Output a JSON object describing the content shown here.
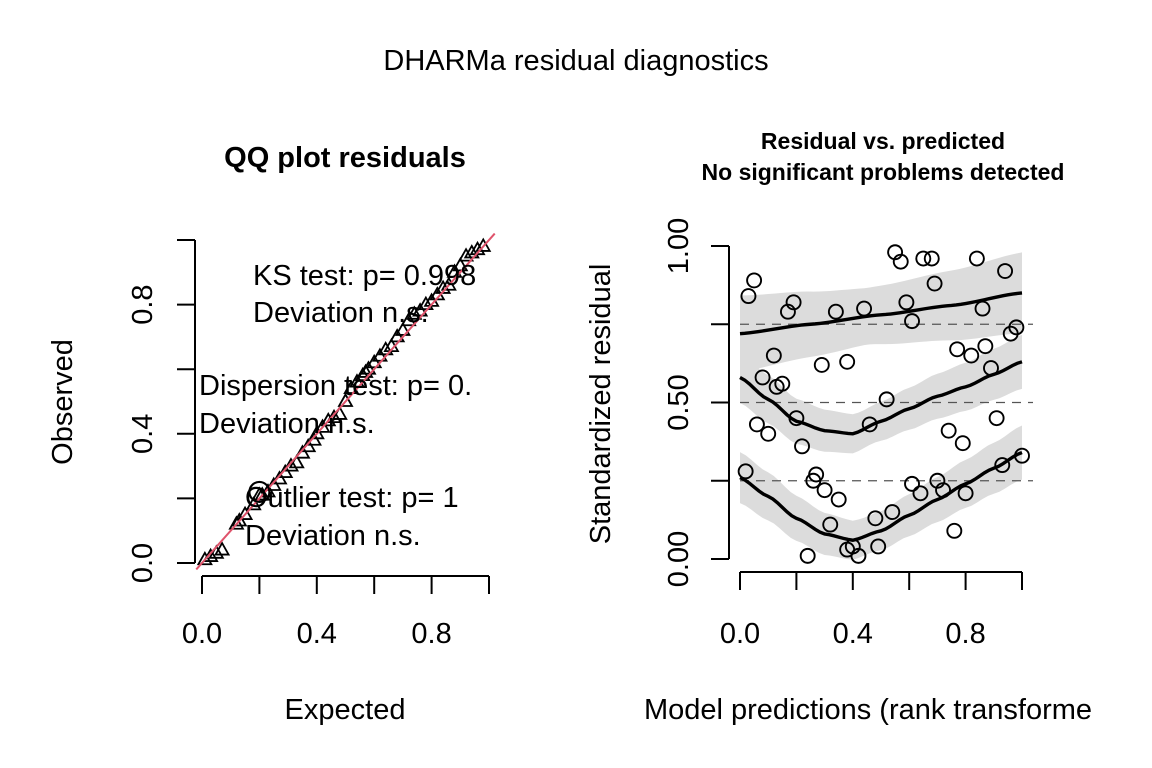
{
  "figure_title": "DHARMa residual diagnostics",
  "chart_data": [
    {
      "type": "scatter",
      "title": "QQ plot residuals",
      "xlabel": "Expected",
      "ylabel": "Observed",
      "xlim": [
        0,
        1
      ],
      "ylim": [
        0,
        1
      ],
      "x_ticks": [
        "0.0",
        "0.4",
        "0.8"
      ],
      "y_ticks": [
        "0.0",
        "0.4",
        "0.8"
      ],
      "reference_line": {
        "slope": 1,
        "intercept": 0,
        "color": "#DF536B"
      },
      "marker": "triangle",
      "outlier_marker_at": [
        0.2,
        0.22
      ],
      "points": [
        [
          0.01,
          0.01
        ],
        [
          0.03,
          0.02
        ],
        [
          0.05,
          0.03
        ],
        [
          0.07,
          0.04
        ],
        [
          0.12,
          0.12
        ],
        [
          0.13,
          0.13
        ],
        [
          0.15,
          0.15
        ],
        [
          0.18,
          0.18
        ],
        [
          0.2,
          0.21
        ],
        [
          0.21,
          0.21
        ],
        [
          0.23,
          0.22
        ],
        [
          0.25,
          0.24
        ],
        [
          0.27,
          0.26
        ],
        [
          0.29,
          0.28
        ],
        [
          0.31,
          0.3
        ],
        [
          0.33,
          0.31
        ],
        [
          0.35,
          0.34
        ],
        [
          0.37,
          0.36
        ],
        [
          0.39,
          0.38
        ],
        [
          0.4,
          0.4
        ],
        [
          0.42,
          0.42
        ],
        [
          0.44,
          0.44
        ],
        [
          0.46,
          0.45
        ],
        [
          0.48,
          0.46
        ],
        [
          0.5,
          0.5
        ],
        [
          0.52,
          0.54
        ],
        [
          0.54,
          0.56
        ],
        [
          0.56,
          0.58
        ],
        [
          0.57,
          0.59
        ],
        [
          0.58,
          0.6
        ],
        [
          0.6,
          0.62
        ],
        [
          0.62,
          0.64
        ],
        [
          0.64,
          0.66
        ],
        [
          0.66,
          0.67
        ],
        [
          0.68,
          0.7
        ],
        [
          0.7,
          0.72
        ],
        [
          0.72,
          0.75
        ],
        [
          0.74,
          0.77
        ],
        [
          0.76,
          0.78
        ],
        [
          0.78,
          0.8
        ],
        [
          0.8,
          0.81
        ],
        [
          0.82,
          0.83
        ],
        [
          0.84,
          0.85
        ],
        [
          0.86,
          0.86
        ],
        [
          0.88,
          0.9
        ],
        [
          0.9,
          0.92
        ],
        [
          0.92,
          0.95
        ],
        [
          0.94,
          0.96
        ],
        [
          0.96,
          0.97
        ],
        [
          0.98,
          0.98
        ]
      ],
      "annotations": [
        {
          "line1": "KS test: p= 0.998",
          "line2": "Deviation  n.s."
        },
        {
          "line1": "Dispersion test: p= 0.",
          "line2": "Deviation  n.s."
        },
        {
          "line1": "Outlier test: p= 1",
          "line2": "Deviation  n.s."
        }
      ]
    },
    {
      "type": "scatter",
      "title": "Residual vs. predicted",
      "subtitle": "No significant problems detected",
      "xlabel": "Model predictions (rank transforme",
      "ylabel": "Standardized residual",
      "xlim": [
        0,
        1
      ],
      "ylim": [
        0,
        1
      ],
      "x_ticks": [
        "0.0",
        "0.4",
        "0.8"
      ],
      "y_ticks": [
        "0.00",
        "0.50",
        "1.00"
      ],
      "reference_lines": [
        0.25,
        0.5,
        0.75
      ],
      "quantile_curves": [
        {
          "quantile": 0.75,
          "x": [
            0,
            0.25,
            0.5,
            0.75,
            1
          ],
          "y": [
            0.72,
            0.75,
            0.78,
            0.81,
            0.85
          ]
        },
        {
          "quantile": 0.5,
          "x": [
            0,
            0.1,
            0.2,
            0.3,
            0.4,
            0.5,
            0.6,
            0.7,
            0.8,
            0.9,
            1
          ],
          "y": [
            0.58,
            0.51,
            0.44,
            0.41,
            0.4,
            0.44,
            0.48,
            0.52,
            0.55,
            0.59,
            0.63
          ]
        },
        {
          "quantile": 0.25,
          "x": [
            0,
            0.1,
            0.2,
            0.3,
            0.4,
            0.5,
            0.6,
            0.7,
            0.8,
            0.9,
            1
          ],
          "y": [
            0.26,
            0.2,
            0.13,
            0.08,
            0.06,
            0.09,
            0.14,
            0.19,
            0.24,
            0.29,
            0.34
          ]
        }
      ],
      "points": [
        [
          0.02,
          0.28
        ],
        [
          0.03,
          0.84
        ],
        [
          0.05,
          0.89
        ],
        [
          0.06,
          0.43
        ],
        [
          0.08,
          0.58
        ],
        [
          0.1,
          0.4
        ],
        [
          0.12,
          0.65
        ],
        [
          0.13,
          0.55
        ],
        [
          0.15,
          0.56
        ],
        [
          0.17,
          0.79
        ],
        [
          0.19,
          0.82
        ],
        [
          0.2,
          0.45
        ],
        [
          0.22,
          0.36
        ],
        [
          0.24,
          0.01
        ],
        [
          0.26,
          0.25
        ],
        [
          0.27,
          0.27
        ],
        [
          0.29,
          0.62
        ],
        [
          0.3,
          0.22
        ],
        [
          0.32,
          0.11
        ],
        [
          0.34,
          0.79
        ],
        [
          0.35,
          0.19
        ],
        [
          0.38,
          0.63
        ],
        [
          0.38,
          0.03
        ],
        [
          0.4,
          0.04
        ],
        [
          0.42,
          0.01
        ],
        [
          0.44,
          0.8
        ],
        [
          0.46,
          0.43
        ],
        [
          0.48,
          0.13
        ],
        [
          0.49,
          0.04
        ],
        [
          0.52,
          0.51
        ],
        [
          0.54,
          0.15
        ],
        [
          0.55,
          0.98
        ],
        [
          0.57,
          0.95
        ],
        [
          0.59,
          0.82
        ],
        [
          0.61,
          0.76
        ],
        [
          0.61,
          0.24
        ],
        [
          0.64,
          0.21
        ],
        [
          0.65,
          0.96
        ],
        [
          0.68,
          0.96
        ],
        [
          0.69,
          0.88
        ],
        [
          0.7,
          0.25
        ],
        [
          0.72,
          0.22
        ],
        [
          0.74,
          0.41
        ],
        [
          0.76,
          0.09
        ],
        [
          0.77,
          0.67
        ],
        [
          0.79,
          0.37
        ],
        [
          0.8,
          0.21
        ],
        [
          0.82,
          0.65
        ],
        [
          0.84,
          0.96
        ],
        [
          0.86,
          0.8
        ],
        [
          0.87,
          0.68
        ],
        [
          0.89,
          0.61
        ],
        [
          0.91,
          0.45
        ],
        [
          0.93,
          0.3
        ],
        [
          0.94,
          0.92
        ],
        [
          0.96,
          0.72
        ],
        [
          0.98,
          0.74
        ],
        [
          1.0,
          0.33
        ]
      ]
    }
  ]
}
